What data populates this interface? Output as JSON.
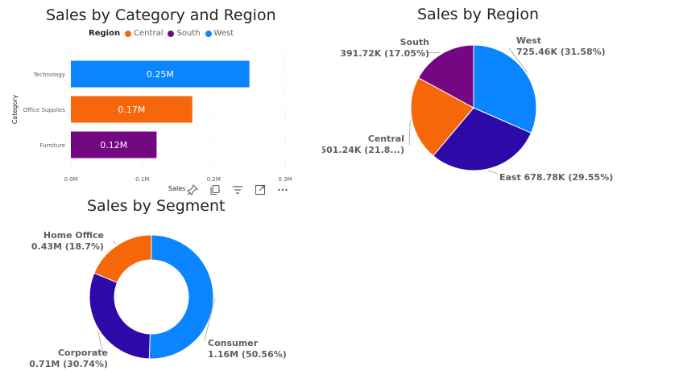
{
  "chart_data": [
    {
      "type": "bar",
      "orientation": "horizontal",
      "title": "Sales by Category and Region",
      "ylabel": "Category",
      "xlabel": "Sales",
      "legend": {
        "title": "Region",
        "placement": "top-left",
        "entries": [
          {
            "name": "Central",
            "color": "#F6660A"
          },
          {
            "name": "South",
            "color": "#740782"
          },
          {
            "name": "West",
            "color": "#0A84FF"
          }
        ]
      },
      "categories": [
        "Technology",
        "Office Supplies",
        "Furniture"
      ],
      "values": [
        0.25,
        0.17,
        0.12
      ],
      "bar_colors": [
        "#0A84FF",
        "#F6660A",
        "#740782"
      ],
      "data_labels": [
        "0.25M",
        "0.17M",
        "0.12M"
      ],
      "xlim": [
        0,
        0.3
      ],
      "xticks": [
        0,
        0.1,
        0.2,
        0.3
      ],
      "xtick_labels": [
        "0.0M",
        "0.1M",
        "0.2M",
        "0.3M"
      ],
      "grid": true
    },
    {
      "type": "pie",
      "title": "Sales by Region",
      "slices": [
        {
          "name": "West",
          "value": 725.46,
          "percent": 31.58,
          "color": "#0A84FF",
          "label_line1": "West",
          "label_line2": "725.46K (31.58%)"
        },
        {
          "name": "East",
          "value": 678.78,
          "percent": 29.55,
          "color": "#2D0AA8",
          "label_line1": "East 678.78K (29.55%)",
          "label_line2": ""
        },
        {
          "name": "Central",
          "value": 501.24,
          "percent": 21.82,
          "color": "#F6660A",
          "label_line1": "Central",
          "label_line2": "501.24K (21.8...)"
        },
        {
          "name": "South",
          "value": 391.72,
          "percent": 17.05,
          "color": "#740782",
          "label_line1": "South",
          "label_line2": "391.72K (17.05%)"
        }
      ]
    },
    {
      "type": "donut",
      "title": "Sales by Segment",
      "slices": [
        {
          "name": "Consumer",
          "value": 1.16,
          "percent": 50.56,
          "color": "#0A84FF",
          "label_line1": "Consumer",
          "label_line2": "1.16M (50.56%)"
        },
        {
          "name": "Corporate",
          "value": 0.71,
          "percent": 30.74,
          "color": "#2D0AA8",
          "label_line1": "Corporate",
          "label_line2": "0.71M (30.74%)"
        },
        {
          "name": "Home Office",
          "value": 0.43,
          "percent": 18.7,
          "color": "#F6660A",
          "label_line1": "Home Office",
          "label_line2": "0.43M (18.7%)"
        }
      ]
    }
  ],
  "toolbar": {
    "icons": [
      "pin-icon",
      "copy-icon",
      "filter-icon",
      "focus-mode-icon",
      "more-options-icon"
    ]
  }
}
